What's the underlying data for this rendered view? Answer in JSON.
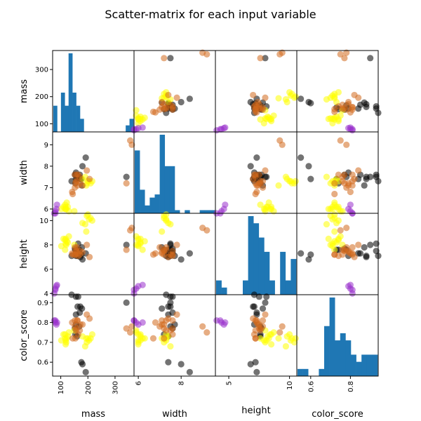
{
  "chart_data": {
    "type": "scatter",
    "title": "Scatter-matrix for each input variable",
    "variables": [
      "mass",
      "width",
      "height",
      "color_score"
    ],
    "xlabels": [
      "mass",
      "width",
      "height",
      "color_score"
    ],
    "ylabels": [
      "mass",
      "width",
      "height",
      "color_score"
    ],
    "ranges": {
      "mass": [
        70,
        370
      ],
      "width": [
        5.8,
        9.6
      ],
      "height": [
        3.9,
        10.6
      ],
      "color_score": [
        0.53,
        0.94
      ]
    },
    "ticks": {
      "mass": {
        "values": [
          100,
          200,
          300
        ],
        "labels": [
          "100",
          "200",
          "300"
        ]
      },
      "width": {
        "values": [
          6,
          7,
          8,
          9
        ],
        "labels": [
          "6",
          "7",
          "8",
          "9"
        ],
        "x_values": [
          6,
          8
        ],
        "x_labels": [
          "6",
          "8"
        ]
      },
      "height": {
        "values": [
          4,
          6,
          8,
          10
        ],
        "labels": [
          "4",
          "6",
          "8",
          "10"
        ],
        "x_values": [
          5,
          10
        ],
        "x_labels": [
          "5",
          "10"
        ]
      },
      "color_score": {
        "values": [
          0.6,
          0.7,
          0.8,
          0.9
        ],
        "labels": [
          "0.6",
          "0.7",
          "0.8",
          "0.9"
        ],
        "x_values": [
          0.6,
          0.8
        ],
        "x_labels": [
          "0.6",
          "0.8"
        ]
      }
    },
    "histograms": {
      "mass": [
        2,
        0,
        3,
        2,
        6,
        3,
        2,
        1,
        0,
        0,
        0,
        0,
        0,
        0,
        0,
        0,
        0,
        0,
        0,
        0.5,
        1
      ],
      "width": [
        4,
        1.5,
        0.5,
        1,
        1.2,
        5,
        3,
        3,
        0.2,
        0,
        0.2,
        0,
        0,
        0.2,
        0.2,
        0.2
      ],
      "height": [
        1,
        0.5,
        0,
        0,
        0,
        1,
        5.5,
        5,
        4,
        3,
        1,
        0,
        3,
        1,
        2.5
      ],
      "color_score": [
        1,
        1,
        0,
        0,
        1,
        7,
        11,
        5,
        6,
        5,
        3,
        2,
        3,
        3,
        3
      ]
    },
    "groups": [
      {
        "color": "#000000",
        "points": [
          [
            192,
            8.4,
            7.3,
            0.55
          ],
          [
            180,
            8.0,
            6.8,
            0.59
          ],
          [
            176,
            7.4,
            7.2,
            0.6
          ],
          [
            178,
            7.1,
            7.8,
            0.87
          ],
          [
            172,
            7.4,
            7.0,
            0.88
          ],
          [
            154,
            7.2,
            7.6,
            0.74
          ],
          [
            164,
            7.5,
            8.1,
            0.93
          ],
          [
            152,
            7.6,
            7.7,
            0.77
          ],
          [
            156,
            7.7,
            7.1,
            0.79
          ],
          [
            156,
            7.6,
            7.5,
            0.93
          ],
          [
            168,
            7.5,
            7.6,
            0.78
          ],
          [
            162,
            7.5,
            7.1,
            0.88
          ],
          [
            160,
            7.4,
            7.6,
            0.73
          ],
          [
            156,
            7.4,
            7.3,
            0.84
          ],
          [
            140,
            7.3,
            7.1,
            0.94
          ],
          [
            170,
            7.6,
            7.3,
            0.85
          ],
          [
            342,
            7.5,
            8.0,
            0.9
          ]
        ]
      },
      {
        "color": "#ffff00",
        "points": [
          [
            180,
            7.4,
            9.8,
            0.73
          ],
          [
            196,
            7.2,
            10.4,
            0.7
          ],
          [
            200,
            7.3,
            10.5,
            0.72
          ],
          [
            204,
            7.3,
            10.1,
            0.71
          ],
          [
            210,
            7.2,
            10.2,
            0.72
          ],
          [
            216,
            7.3,
            10.0,
            0.74
          ],
          [
            190,
            7.5,
            9.7,
            0.68
          ],
          [
            118,
            6.1,
            8.1,
            0.71
          ],
          [
            120,
            6.0,
            8.0,
            0.7
          ],
          [
            116,
            6.2,
            7.6,
            0.72
          ],
          [
            110,
            6.1,
            8.5,
            0.74
          ],
          [
            102,
            6.0,
            7.9,
            0.71
          ],
          [
            118,
            6.0,
            8.5,
            0.69
          ],
          [
            122,
            6.3,
            8.3,
            0.72
          ],
          [
            126,
            6.1,
            8.2,
            0.73
          ],
          [
            130,
            5.9,
            8.7,
            0.75
          ],
          [
            150,
            5.9,
            8.0,
            0.76
          ],
          [
            116,
            6.0,
            8.4,
            0.74
          ],
          [
            194,
            7.1,
            9.1,
            0.72
          ]
        ]
      },
      {
        "color": "#d2691e",
        "points": [
          [
            154,
            7.2,
            7.2,
            0.72
          ],
          [
            162,
            7.1,
            7.3,
            0.81
          ],
          [
            152,
            7.6,
            7.2,
            0.81
          ],
          [
            158,
            7.6,
            7.5,
            0.77
          ],
          [
            170,
            7.5,
            7.2,
            0.76
          ],
          [
            180,
            7.1,
            7.4,
            0.79
          ],
          [
            142,
            6.8,
            7.3,
            0.8
          ],
          [
            144,
            6.7,
            7.2,
            0.72
          ],
          [
            156,
            7.3,
            7.6,
            0.76
          ],
          [
            152,
            7.0,
            7.8,
            0.78
          ],
          [
            160,
            7.3,
            7.8,
            0.81
          ],
          [
            172,
            7.2,
            7.5,
            0.79
          ],
          [
            164,
            7.6,
            7.1,
            0.74
          ],
          [
            356,
            9.2,
            9.2,
            0.75
          ],
          [
            362,
            9.0,
            9.4,
            0.78
          ],
          [
            342,
            7.2,
            7.6,
            0.77
          ],
          [
            206,
            7.4,
            7.0,
            0.82
          ],
          [
            196,
            7.8,
            8.0,
            0.84
          ]
        ]
      },
      {
        "color": "#9932cc",
        "points": [
          [
            86,
            6.2,
            4.7,
            0.8
          ],
          [
            84,
            6.0,
            4.6,
            0.79
          ],
          [
            80,
            5.8,
            4.3,
            0.81
          ],
          [
            76,
            5.8,
            4.0,
            0.81
          ],
          [
            80,
            5.9,
            4.4,
            0.8
          ]
        ]
      }
    ]
  }
}
